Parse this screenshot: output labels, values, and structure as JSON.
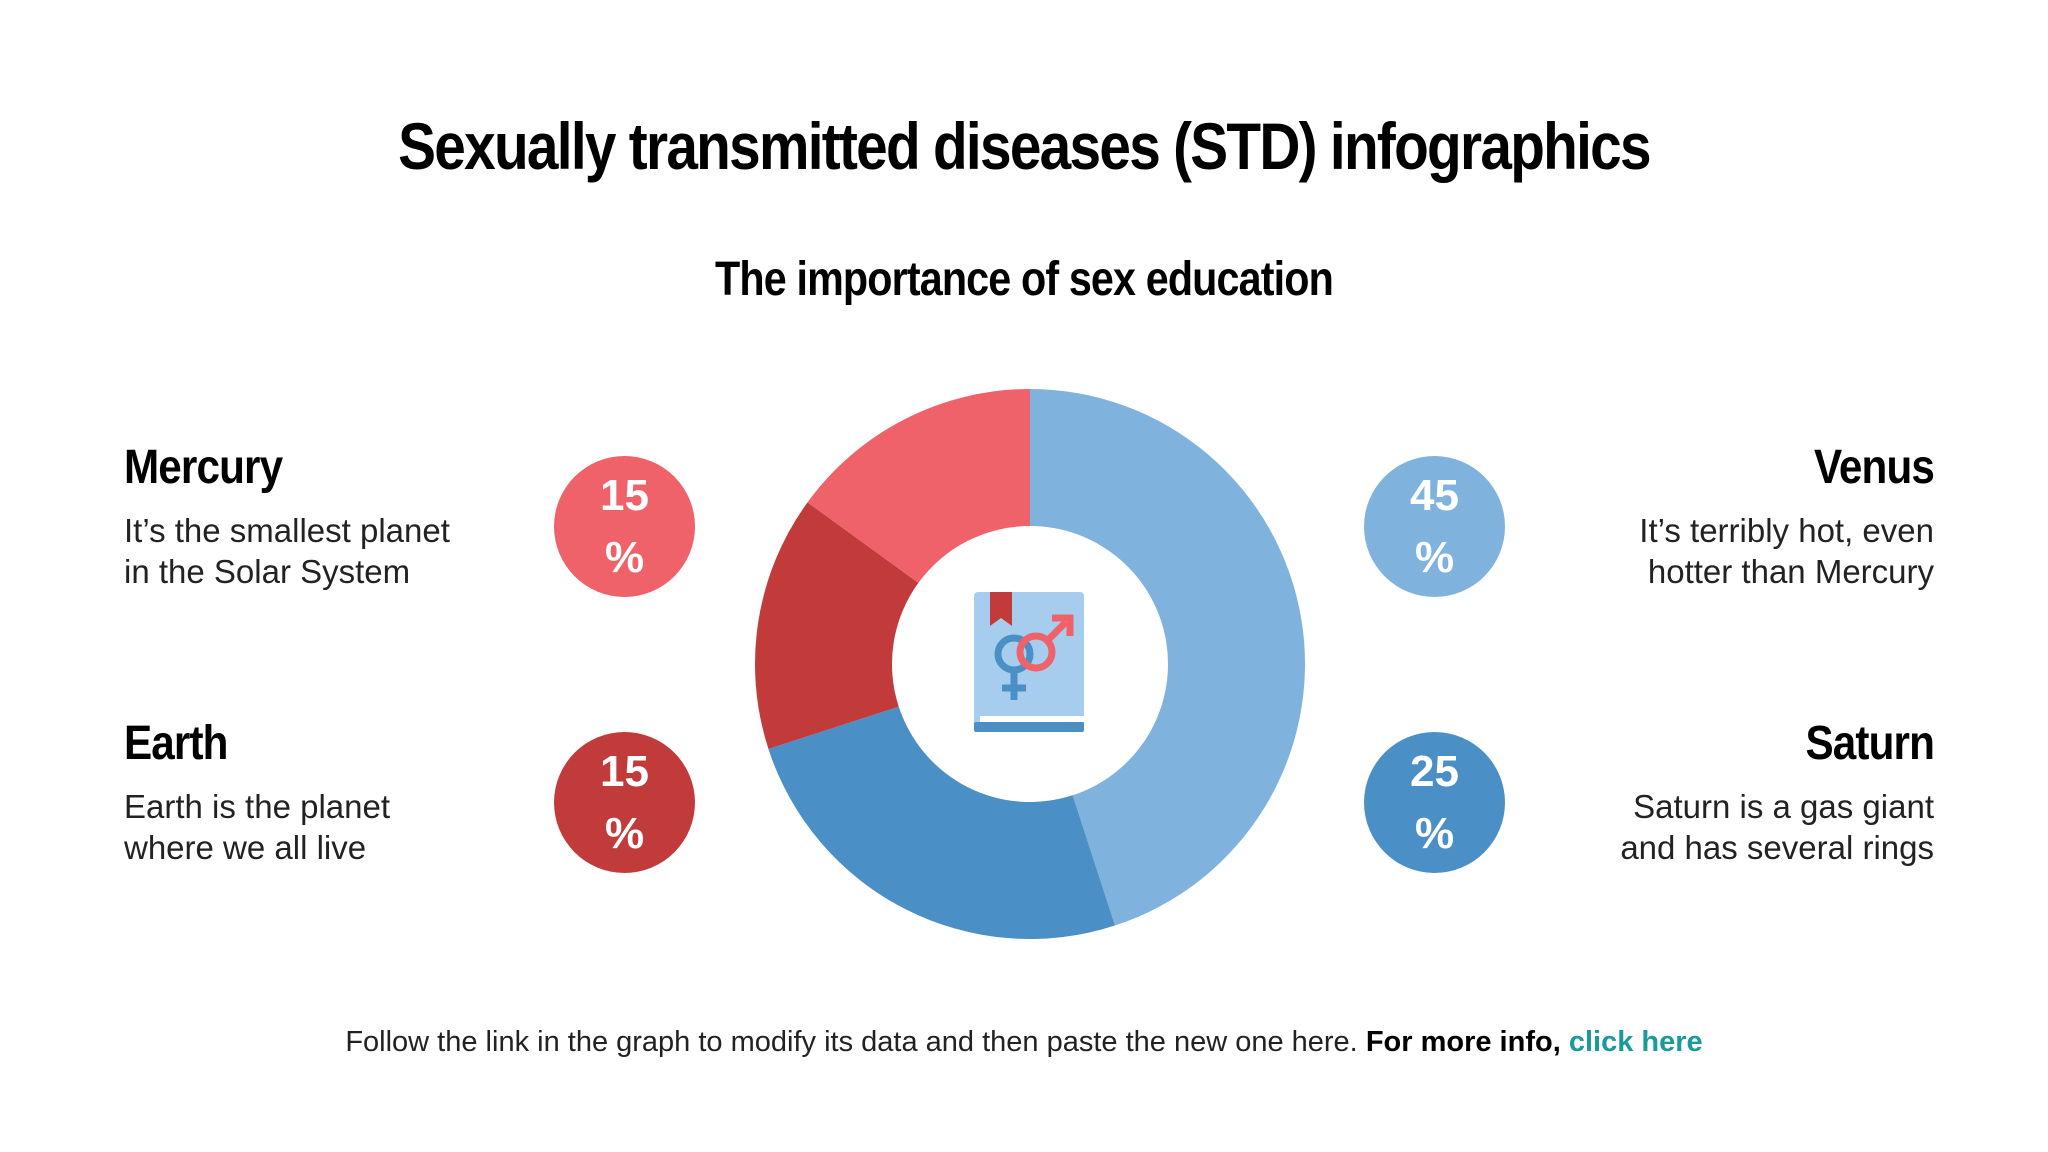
{
  "title": "Sexually transmitted diseases (STD) infographics",
  "subtitle": "The importance of sex education",
  "items": [
    {
      "name": "Mercury",
      "desc1": "It’s the smallest planet",
      "desc2": "in the Solar System",
      "value": "15",
      "unit": "%"
    },
    {
      "name": "Earth",
      "desc1": "Earth is the planet",
      "desc2": "where we all live",
      "value": "15",
      "unit": "%"
    },
    {
      "name": "Venus",
      "desc1": "It’s terribly hot, even",
      "desc2": "hotter than Mercury",
      "value": "45",
      "unit": "%"
    },
    {
      "name": "Saturn",
      "desc1": "Saturn is a gas giant",
      "desc2": "and has several rings",
      "value": "25",
      "unit": "%"
    }
  ],
  "footer": {
    "text": "Follow the link in the graph to modify its data and then paste the new one here.",
    "more": "For more info,",
    "link": "click here"
  },
  "center_icon": "sex-education-book-icon",
  "colors": {
    "mercury": "#f0626a",
    "earth": "#c23b3b",
    "venus": "#7fb3de",
    "saturn": "#4a8fc5"
  },
  "chart_data": {
    "type": "pie",
    "donut": true,
    "categories": [
      "Venus",
      "Saturn",
      "Earth",
      "Mercury"
    ],
    "values": [
      45,
      25,
      15,
      15
    ],
    "colors": [
      "#7fb3de",
      "#4a8fc5",
      "#c23b3b",
      "#f0626a"
    ]
  }
}
